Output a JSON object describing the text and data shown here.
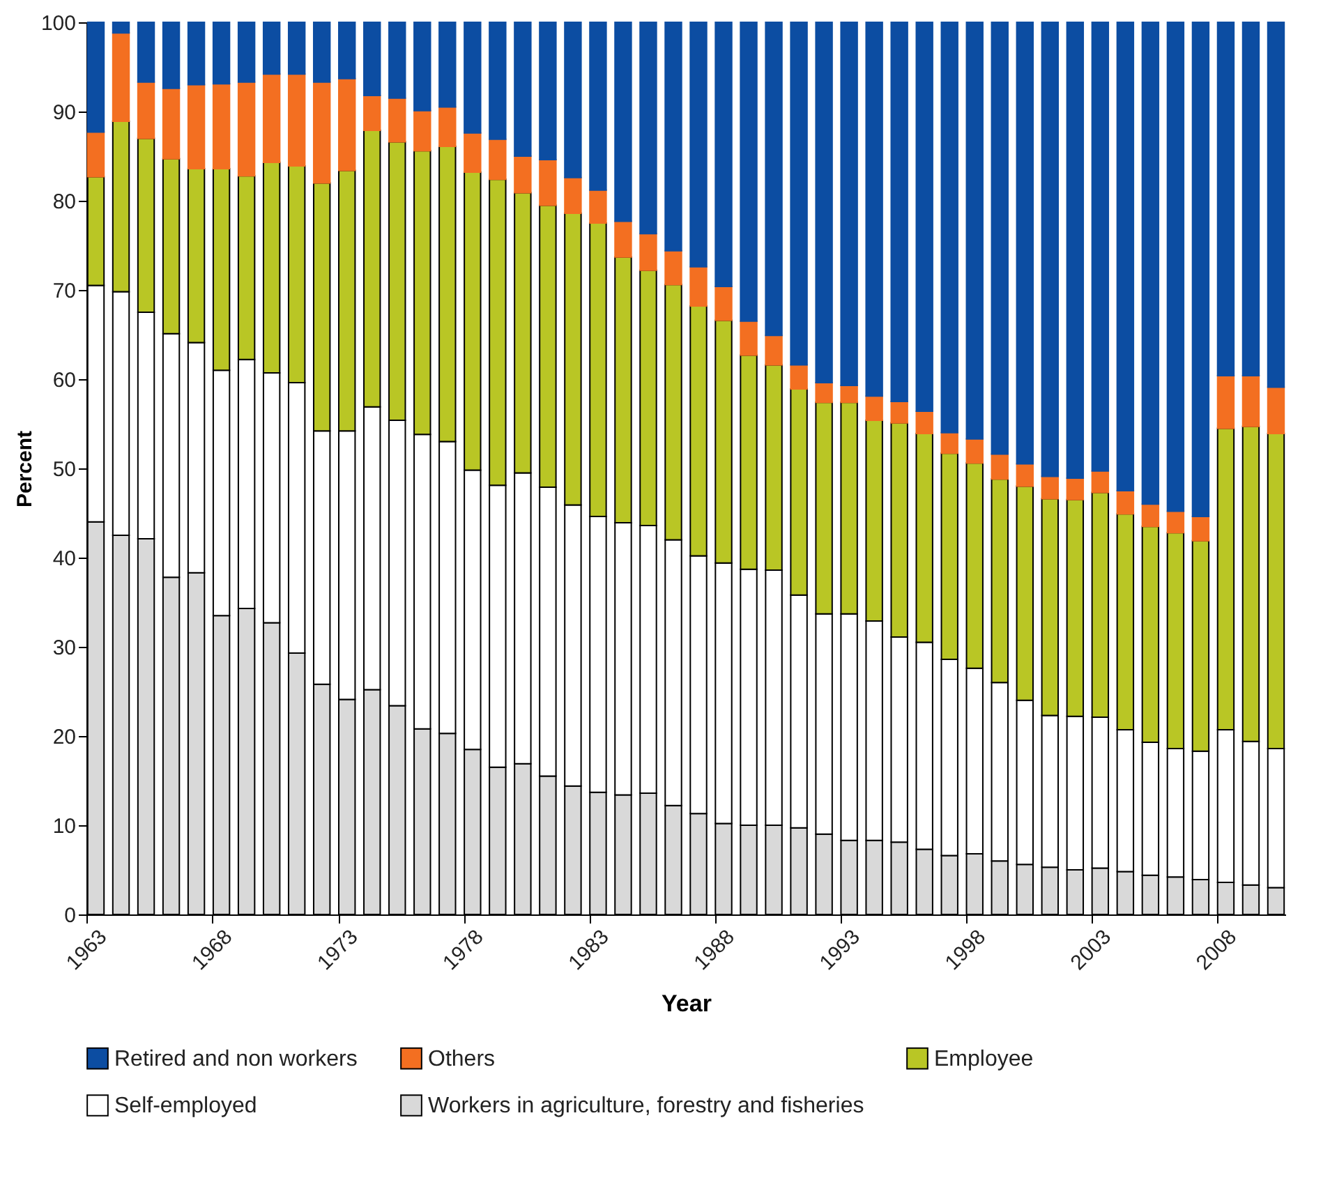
{
  "chart_data": {
    "type": "bar",
    "stacked": true,
    "xlabel": "Year",
    "ylabel": "Percent",
    "legend": "bottom",
    "grid": false,
    "categories": [
      "1963",
      null,
      null,
      null,
      null,
      "1968",
      null,
      null,
      null,
      null,
      "1973",
      null,
      null,
      null,
      null,
      "1978",
      null,
      null,
      null,
      null,
      "1983",
      null,
      null,
      null,
      null,
      "1988",
      null,
      null,
      null,
      null,
      "1993",
      null,
      null,
      null,
      null,
      "1998",
      null,
      null,
      null,
      null,
      "2003",
      null,
      null,
      null,
      null,
      "2008",
      null,
      null
    ],
    "ylim": [
      0,
      100
    ],
    "yticks": [
      0,
      10,
      20,
      30,
      40,
      50,
      60,
      70,
      80,
      90,
      100
    ],
    "series": [
      {
        "name": "Workers in agriculture, forestry and fisheries",
        "color": "#d9d9d9",
        "values": [
          44,
          42.5,
          42.1,
          37.8,
          38.3,
          33.5,
          34.3,
          32.7,
          29.3,
          25.8,
          24.1,
          25.2,
          23.4,
          20.8,
          20.3,
          18.5,
          16.5,
          16.9,
          15.5,
          14.4,
          13.7,
          13.4,
          13.6,
          12.2,
          11.3,
          10.2,
          10,
          10,
          9.7,
          9,
          8.3,
          8.3,
          8.1,
          7.3,
          6.6,
          6.8,
          6,
          5.6,
          5.3,
          5,
          5.2,
          4.8,
          4.4,
          4.2,
          3.9,
          3.6,
          3.3,
          3
        ]
      },
      {
        "name": "Self-employed",
        "color": "#ffffff",
        "values": [
          26.5,
          27.3,
          25.4,
          27.3,
          25.8,
          27.5,
          27.9,
          28,
          30.3,
          28.4,
          30.1,
          31.7,
          32,
          33,
          32.7,
          31.3,
          31.6,
          32.6,
          32.4,
          31.5,
          30.9,
          30.5,
          30,
          29.8,
          28.9,
          29.2,
          28.7,
          28.6,
          26.1,
          24.7,
          25.4,
          24.6,
          23,
          23.2,
          22,
          20.8,
          20,
          18.4,
          17,
          17.2,
          16.9,
          15.9,
          14.9,
          14.4,
          14.4,
          17.1,
          16.1,
          15.6
        ]
      },
      {
        "name": "Employee",
        "color": "#b9c625",
        "values": [
          12.2,
          19.1,
          19.5,
          19.6,
          19.5,
          22.6,
          20.6,
          23.6,
          24.3,
          27.8,
          29.2,
          31,
          31.2,
          31.8,
          33.1,
          33.4,
          34.3,
          31.4,
          31.6,
          32.7,
          32.9,
          29.8,
          28.6,
          28.6,
          28,
          27.2,
          24,
          23,
          23.1,
          23.7,
          23.7,
          22.5,
          24,
          23.4,
          23.1,
          23,
          22.8,
          24,
          24.3,
          24.3,
          25.2,
          24.2,
          24.2,
          24.2,
          23.6,
          33.8,
          35.3,
          35.3
        ]
      },
      {
        "name": "Others",
        "color": "#f36f21",
        "values": [
          5,
          9.9,
          6.3,
          7.9,
          9.4,
          9.5,
          10.5,
          9.9,
          10.3,
          11.3,
          10.3,
          3.9,
          4.9,
          4.5,
          4.4,
          4.4,
          4.5,
          4.1,
          5.1,
          4,
          3.7,
          4,
          4.1,
          3.8,
          4.4,
          3.8,
          3.8,
          3.3,
          2.7,
          2.2,
          1.9,
          2.7,
          2.4,
          2.5,
          2.3,
          2.7,
          2.8,
          2.5,
          2.5,
          2.4,
          2.4,
          2.6,
          2.5,
          2.4,
          2.7,
          5.9,
          5.7,
          5.2
        ]
      },
      {
        "name": "Retired and non workers",
        "color": "#0c4da2",
        "values": [
          12.3,
          1.2,
          6.7,
          7.4,
          7,
          6.9,
          6.7,
          5.8,
          5.8,
          6.7,
          6.3,
          8.2,
          8.5,
          9.9,
          9.5,
          12.4,
          13.1,
          15,
          15.4,
          17.4,
          18.8,
          22.3,
          23.7,
          25.6,
          27.4,
          29.6,
          33.5,
          35.1,
          38.4,
          40.4,
          40.7,
          41.9,
          42.5,
          43.6,
          46,
          46.7,
          48.4,
          49.5,
          50.9,
          51.1,
          50.3,
          52.5,
          54,
          54.8,
          55.4,
          39.6,
          39.6,
          40.9
        ]
      }
    ]
  }
}
